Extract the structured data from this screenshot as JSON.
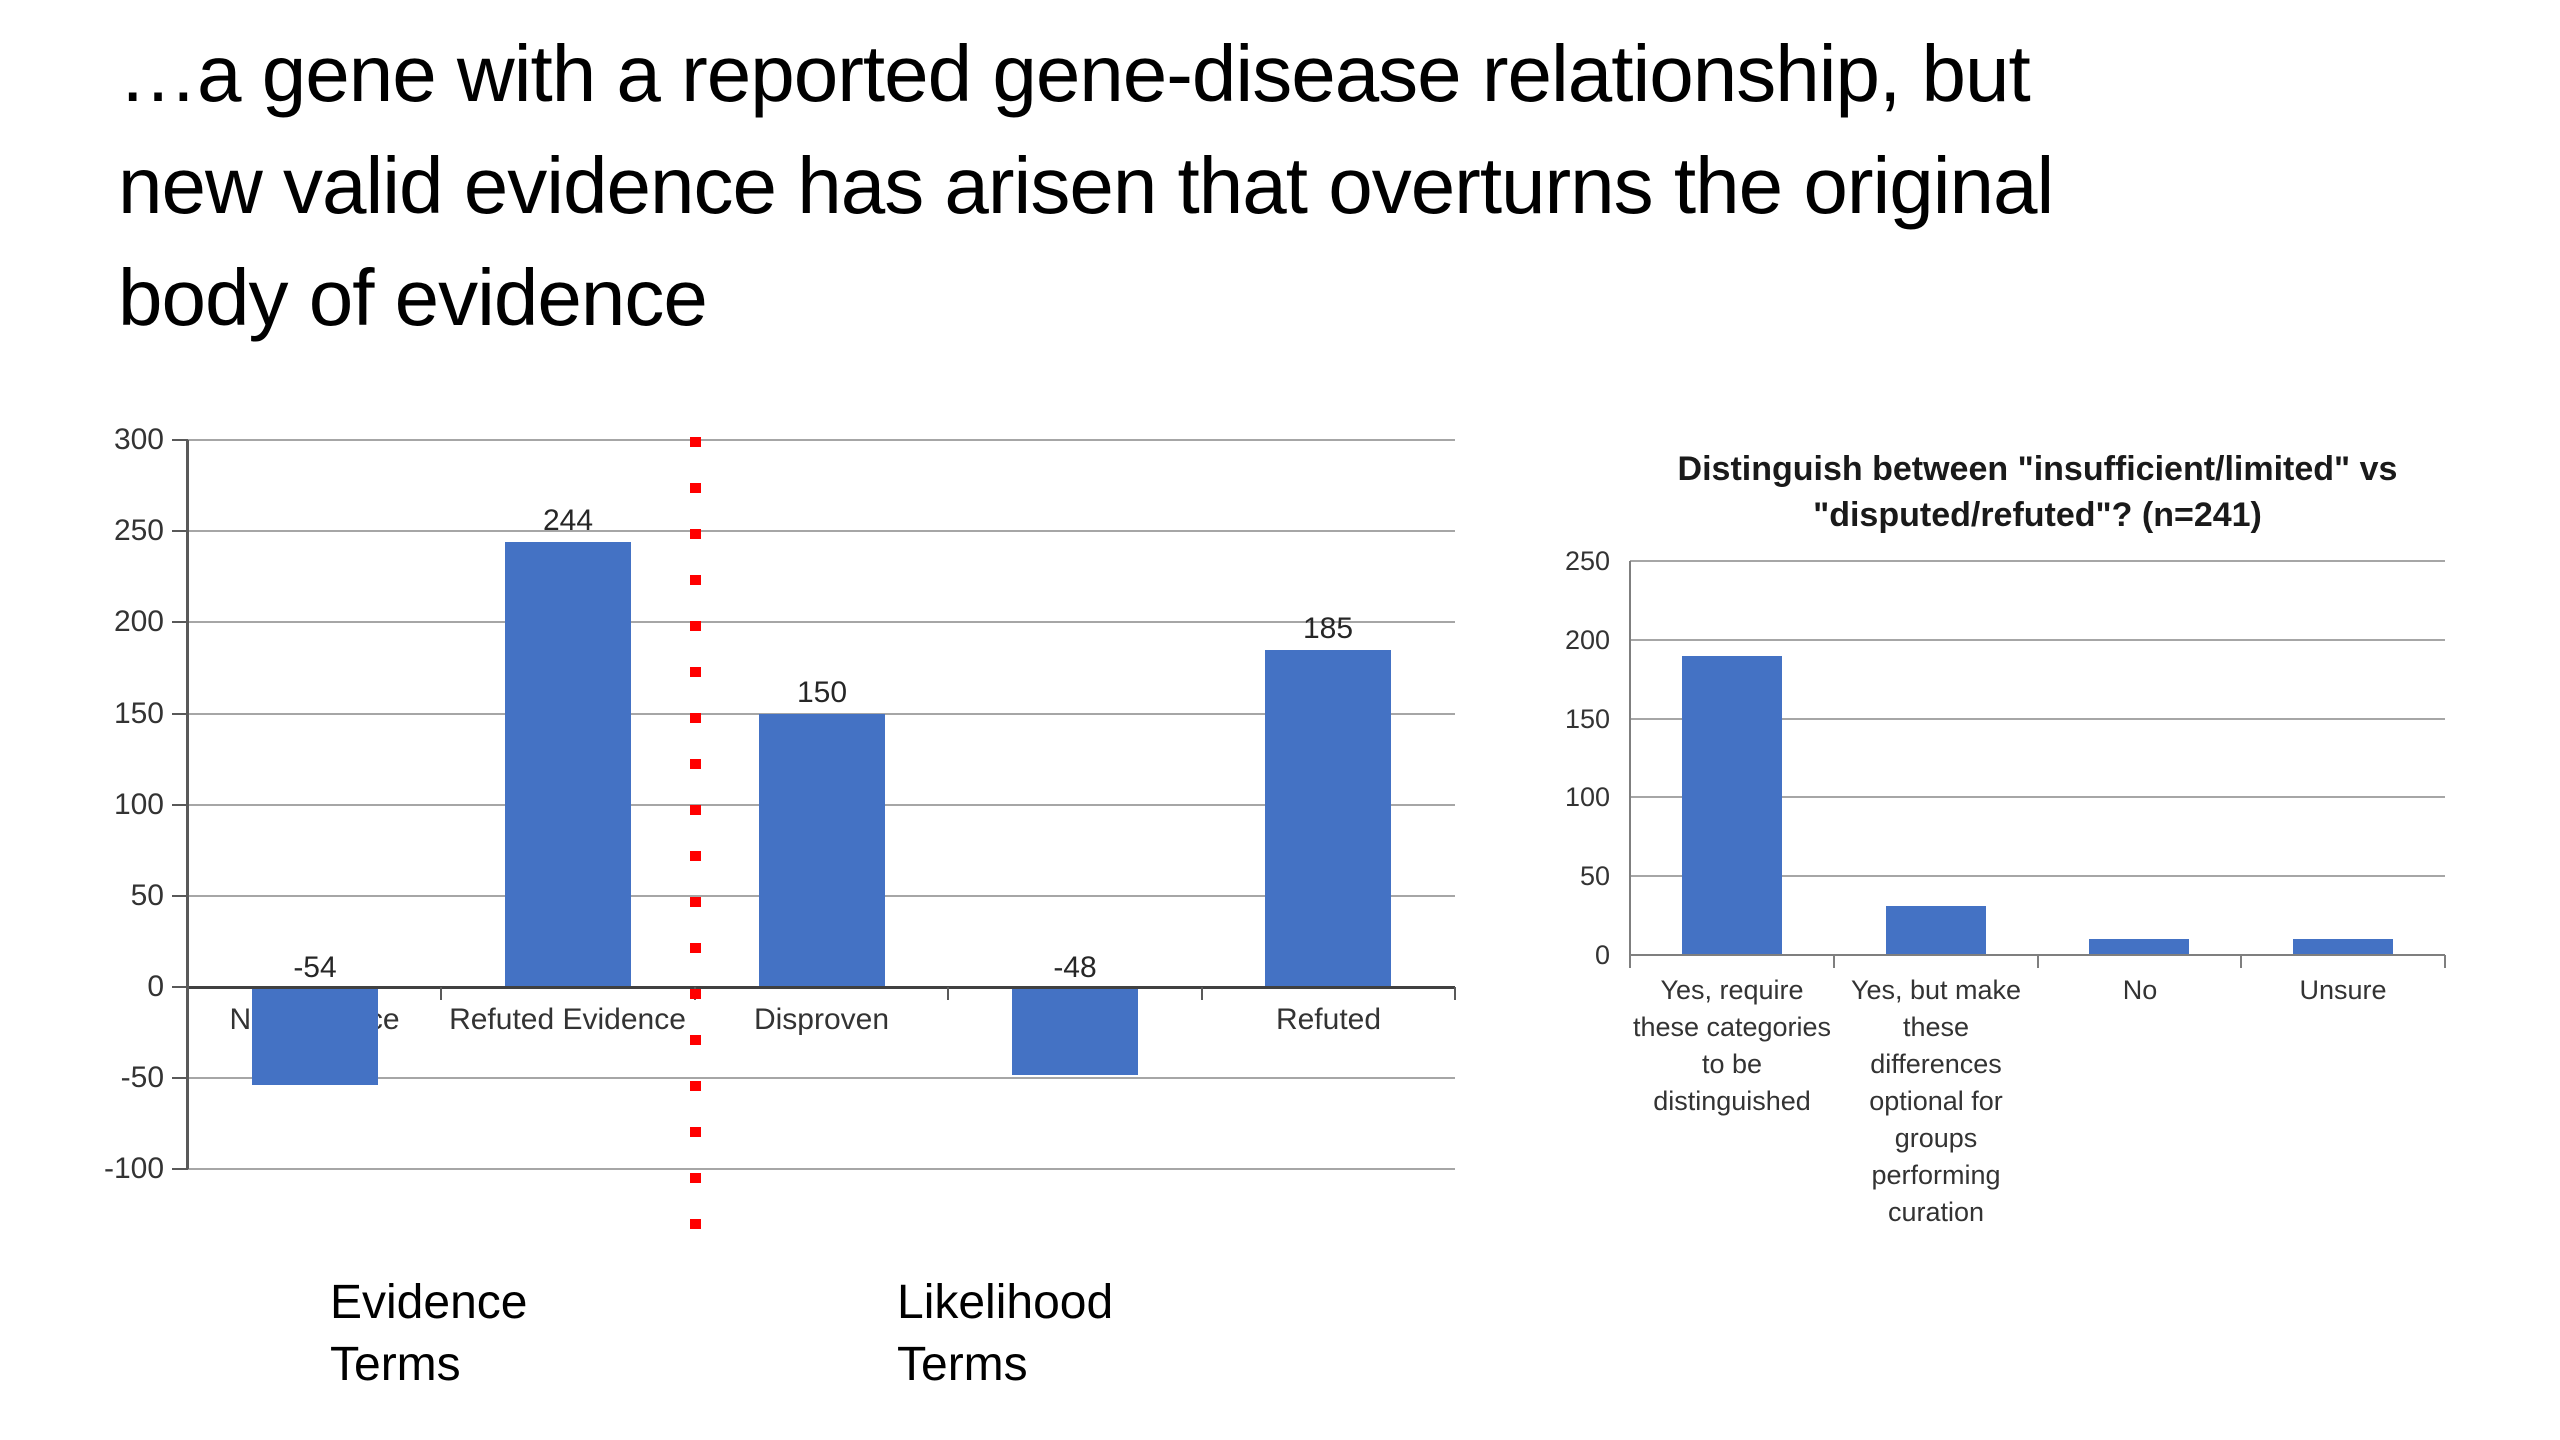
{
  "slide": {
    "title": "…a gene with a reported gene-disease relationship, but\nnew valid evidence has arisen that overturns the original\nbody of evidence"
  },
  "term_groups": {
    "evidence": "Evidence\nTerms",
    "likelihood": "Likelihood\nTerms"
  },
  "colors": {
    "bar_blue": "#4472C4",
    "divider_red": "#FF0000",
    "gridline_gray": "#A6A6A6",
    "zero_axis_dark": "#404040",
    "axis_gray": "#595959",
    "chart_text": "#333333"
  },
  "chart_data": [
    {
      "type": "bar",
      "title": "",
      "categories": [
        "No Evidence",
        "Refuted Evidence",
        "Disproven",
        "",
        "Refuted"
      ],
      "values": [
        -54,
        244,
        150,
        -48,
        185
      ],
      "data_labels": [
        "-54",
        "244",
        "150",
        "-48",
        "185"
      ],
      "xlabel": "",
      "ylabel": "",
      "ylim": [
        -100,
        300
      ],
      "ytick_step": 50,
      "yticks": [
        "300",
        "250",
        "200",
        "150",
        "100",
        "50",
        "0",
        "-50",
        "-100"
      ],
      "grid": true,
      "legend": "none",
      "annotation": "red dotted vertical divider between Evidence Terms and Likelihood Terms groups"
    },
    {
      "type": "bar",
      "title": "Distinguish between \"insufficient/limited\" vs\n\"disputed/refuted\"? (n=241)",
      "categories": [
        "Yes, require\nthese categories\nto be\ndistinguished",
        "Yes, but make\nthese\ndifferences\noptional for\ngroups\nperforming\ncuration",
        "No",
        "Unsure"
      ],
      "values": [
        190,
        31,
        10,
        10
      ],
      "xlabel": "",
      "ylabel": "",
      "ylim": [
        0,
        250
      ],
      "ytick_step": 50,
      "yticks": [
        "250",
        "200",
        "150",
        "100",
        "50",
        "0"
      ],
      "grid": true,
      "legend": "none"
    }
  ]
}
